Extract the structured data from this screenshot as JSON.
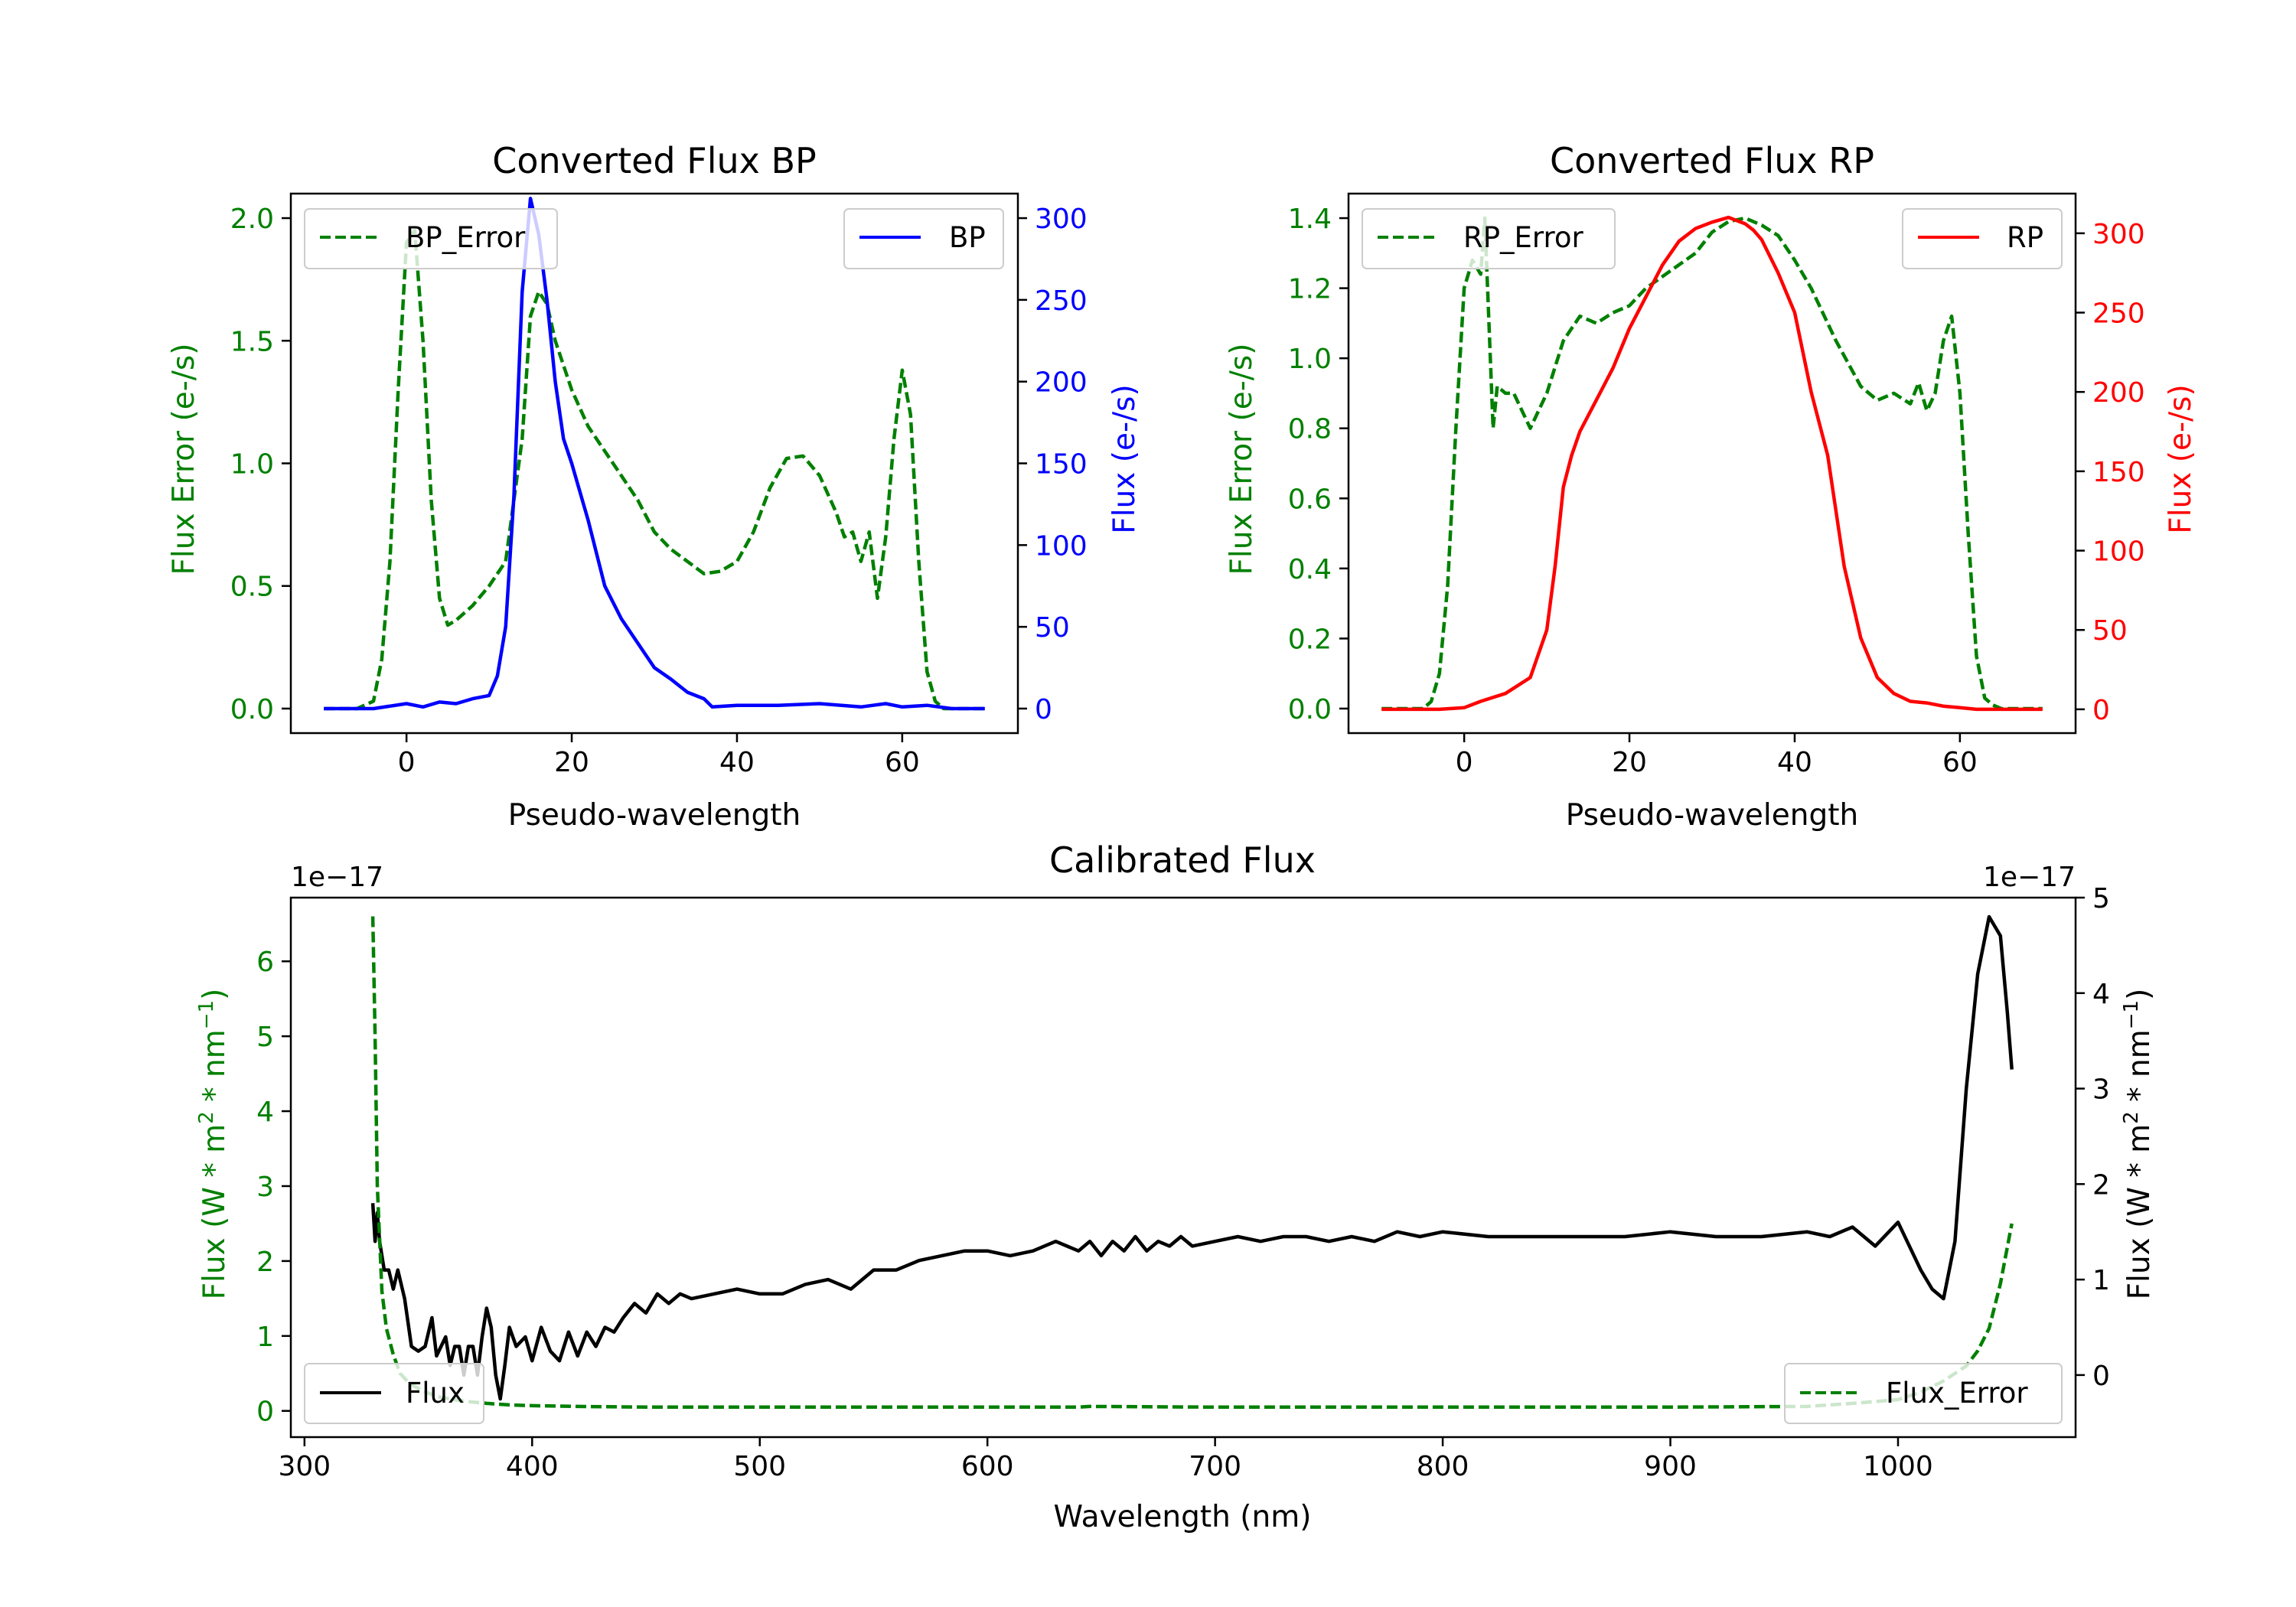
{
  "chart_data": [
    {
      "id": "bp",
      "type": "line",
      "title": "Converted Flux BP",
      "xlabel": "Pseudo-wavelength",
      "xlim": [
        -14,
        74
      ],
      "xticks": [
        0,
        20,
        40,
        60
      ],
      "left_axis": {
        "label": "Flux Error (e-/s)",
        "color": "#008000",
        "ylim": [
          -0.1,
          2.1
        ],
        "ticks": [
          0.0,
          0.5,
          1.0,
          1.5,
          2.0
        ],
        "tick_labels": [
          "0.0",
          "0.5",
          "1.0",
          "1.5",
          "2.0"
        ]
      },
      "right_axis": {
        "label": "Flux (e-/s)",
        "color": "#0000ff",
        "ylim": [
          -15,
          315
        ],
        "ticks": [
          0,
          50,
          100,
          150,
          200,
          250,
          300
        ],
        "tick_labels": [
          "0",
          "50",
          "100",
          "150",
          "200",
          "250",
          "300"
        ]
      },
      "series": [
        {
          "name": "BP_Error",
          "axis": "left",
          "color": "#008000",
          "dash": true,
          "legend_pos": "top-left",
          "x": [
            -10,
            -6,
            -4,
            -3,
            -2,
            -1,
            0,
            1,
            2,
            3,
            4,
            5,
            6,
            8,
            10,
            12,
            14,
            15,
            16,
            17,
            18,
            20,
            22,
            24,
            26,
            28,
            30,
            32,
            34,
            36,
            38,
            40,
            42,
            44,
            46,
            48,
            50,
            52,
            53,
            54,
            55,
            56,
            57,
            58,
            59,
            60,
            61,
            62,
            63,
            64,
            65,
            66,
            70
          ],
          "values": [
            0,
            0,
            0.03,
            0.2,
            0.6,
            1.3,
            1.9,
            1.95,
            1.5,
            0.85,
            0.45,
            0.34,
            0.36,
            0.42,
            0.5,
            0.6,
            1.1,
            1.6,
            1.7,
            1.65,
            1.5,
            1.3,
            1.15,
            1.05,
            0.95,
            0.85,
            0.72,
            0.65,
            0.6,
            0.55,
            0.56,
            0.6,
            0.72,
            0.9,
            1.02,
            1.03,
            0.95,
            0.8,
            0.7,
            0.72,
            0.6,
            0.72,
            0.45,
            0.7,
            1.1,
            1.38,
            1.2,
            0.6,
            0.15,
            0.03,
            0,
            0,
            0
          ]
        },
        {
          "name": "BP",
          "axis": "right",
          "color": "#0000ff",
          "dash": false,
          "legend_pos": "top-right",
          "x": [
            -10,
            -4,
            0,
            2,
            4,
            6,
            8,
            10,
            11,
            12,
            13,
            14,
            15,
            16,
            17,
            18,
            19,
            20,
            22,
            24,
            26,
            28,
            30,
            32,
            34,
            36,
            37,
            40,
            45,
            50,
            55,
            58,
            60,
            63,
            66,
            70
          ],
          "values": [
            0,
            0,
            3,
            1,
            4,
            3,
            6,
            8,
            20,
            50,
            130,
            255,
            312,
            290,
            250,
            200,
            165,
            150,
            115,
            75,
            55,
            40,
            25,
            18,
            10,
            6,
            1,
            2,
            2,
            3,
            1,
            3,
            1,
            2,
            0,
            0
          ]
        }
      ]
    },
    {
      "id": "rp",
      "type": "line",
      "title": "Converted Flux RP",
      "xlabel": "Pseudo-wavelength",
      "xlim": [
        -14,
        74
      ],
      "xticks": [
        0,
        20,
        40,
        60
      ],
      "left_axis": {
        "label": "Flux Error (e-/s)",
        "color": "#008000",
        "ylim": [
          -0.07,
          1.47
        ],
        "ticks": [
          0.0,
          0.2,
          0.4,
          0.6,
          0.8,
          1.0,
          1.2,
          1.4
        ],
        "tick_labels": [
          "0.0",
          "0.2",
          "0.4",
          "0.6",
          "0.8",
          "1.0",
          "1.2",
          "1.4"
        ]
      },
      "right_axis": {
        "label": "Flux (e-/s)",
        "color": "#ff0000",
        "ylim": [
          -15,
          325
        ],
        "ticks": [
          0,
          50,
          100,
          150,
          200,
          250,
          300
        ],
        "tick_labels": [
          "0",
          "50",
          "100",
          "150",
          "200",
          "250",
          "300"
        ]
      },
      "series": [
        {
          "name": "RP_Error",
          "axis": "left",
          "color": "#008000",
          "dash": true,
          "legend_pos": "top-left",
          "x": [
            -10,
            -5,
            -4,
            -3,
            -2,
            -1,
            0,
            1,
            2,
            2.5,
            3,
            3.5,
            4,
            5,
            6,
            7,
            8,
            10,
            12,
            14,
            16,
            18,
            20,
            22,
            25,
            28,
            30,
            32,
            34,
            36,
            38,
            40,
            42,
            45,
            48,
            50,
            52,
            54,
            55,
            56,
            57,
            58,
            59,
            60,
            61,
            62,
            63,
            64,
            65,
            70
          ],
          "values": [
            0,
            0,
            0.02,
            0.1,
            0.35,
            0.8,
            1.2,
            1.28,
            1.24,
            1.4,
            1.1,
            0.8,
            0.92,
            0.9,
            0.9,
            0.85,
            0.8,
            0.9,
            1.05,
            1.12,
            1.1,
            1.13,
            1.15,
            1.2,
            1.25,
            1.3,
            1.36,
            1.39,
            1.4,
            1.38,
            1.35,
            1.28,
            1.2,
            1.05,
            0.92,
            0.88,
            0.9,
            0.87,
            0.93,
            0.85,
            0.9,
            1.05,
            1.12,
            0.9,
            0.5,
            0.15,
            0.03,
            0.01,
            0,
            0
          ]
        },
        {
          "name": "RP",
          "axis": "right",
          "color": "#ff0000",
          "dash": false,
          "legend_pos": "top-right",
          "x": [
            -10,
            -3,
            0,
            2,
            5,
            8,
            10,
            11,
            12,
            13,
            14,
            16,
            18,
            20,
            22,
            24,
            26,
            28,
            30,
            32,
            33,
            34,
            35,
            36,
            38,
            40,
            42,
            44,
            46,
            48,
            50,
            52,
            54,
            56,
            58,
            60,
            62,
            65,
            70
          ],
          "values": [
            0,
            0,
            1,
            5,
            10,
            20,
            50,
            90,
            140,
            160,
            175,
            195,
            215,
            240,
            260,
            280,
            295,
            303,
            307,
            310,
            308,
            306,
            302,
            296,
            275,
            250,
            200,
            160,
            90,
            45,
            20,
            10,
            5,
            4,
            2,
            1,
            0,
            0,
            0
          ]
        }
      ]
    },
    {
      "id": "cal",
      "type": "line",
      "title": "Calibrated Flux",
      "xlabel": "Wavelength (nm)",
      "xlim": [
        294,
        1078
      ],
      "xticks": [
        300,
        400,
        500,
        600,
        700,
        800,
        900,
        1000
      ],
      "left_axis": {
        "label": "Flux (W * m2 * nm-1)",
        "color": "#008000",
        "ylim": [
          -0.35,
          6.85
        ],
        "ticks": [
          0,
          1,
          2,
          3,
          4,
          5,
          6
        ],
        "tick_labels": [
          "0",
          "1",
          "2",
          "3",
          "4",
          "5",
          "6"
        ],
        "offset_label": "1e−17"
      },
      "right_axis": {
        "label": "Flux (W * m2 * nm-1)",
        "color": "#000000",
        "ylim": [
          -0.65,
          5.0
        ],
        "ticks": [
          0,
          1,
          2,
          3,
          4,
          5
        ],
        "tick_labels": [
          "0",
          "1",
          "2",
          "3",
          "4",
          "5"
        ],
        "offset_label": "1e−17"
      },
      "series": [
        {
          "name": "Flux",
          "axis": "right",
          "color": "#000000",
          "dash": false,
          "legend_pos": "bottom-left",
          "x": [
            330,
            331,
            332,
            333,
            335,
            337,
            339,
            341,
            344,
            347,
            350,
            353,
            356,
            358,
            360,
            362,
            364,
            366,
            368,
            370,
            372,
            374,
            376,
            378,
            380,
            382,
            384,
            386,
            388,
            390,
            393,
            397,
            400,
            404,
            408,
            412,
            416,
            420,
            424,
            428,
            432,
            436,
            440,
            445,
            450,
            455,
            460,
            465,
            470,
            480,
            490,
            500,
            510,
            520,
            530,
            540,
            550,
            560,
            570,
            580,
            590,
            600,
            610,
            620,
            630,
            640,
            645,
            650,
            655,
            660,
            665,
            670,
            675,
            680,
            685,
            690,
            700,
            710,
            720,
            730,
            740,
            750,
            760,
            770,
            780,
            790,
            800,
            820,
            840,
            860,
            880,
            900,
            920,
            940,
            960,
            970,
            980,
            990,
            1000,
            1010,
            1015,
            1020,
            1025,
            1030,
            1035,
            1040,
            1045,
            1048,
            1050
          ],
          "values": [
            1.8,
            1.4,
            1.7,
            1.4,
            1.1,
            1.1,
            0.9,
            1.1,
            0.8,
            0.3,
            0.25,
            0.3,
            0.6,
            0.2,
            0.3,
            0.4,
            0.1,
            0.3,
            0.3,
            0.0,
            0.3,
            0.3,
            0.0,
            0.4,
            0.7,
            0.5,
            0.0,
            -0.25,
            0.1,
            0.5,
            0.3,
            0.4,
            0.15,
            0.5,
            0.25,
            0.15,
            0.45,
            0.2,
            0.45,
            0.3,
            0.5,
            0.45,
            0.6,
            0.75,
            0.65,
            0.85,
            0.75,
            0.85,
            0.8,
            0.85,
            0.9,
            0.85,
            0.85,
            0.95,
            1.0,
            0.9,
            1.1,
            1.1,
            1.2,
            1.25,
            1.3,
            1.3,
            1.25,
            1.3,
            1.4,
            1.3,
            1.4,
            1.25,
            1.4,
            1.3,
            1.45,
            1.3,
            1.4,
            1.35,
            1.45,
            1.35,
            1.4,
            1.45,
            1.4,
            1.45,
            1.45,
            1.4,
            1.45,
            1.4,
            1.5,
            1.45,
            1.5,
            1.45,
            1.45,
            1.45,
            1.45,
            1.5,
            1.45,
            1.45,
            1.5,
            1.45,
            1.55,
            1.35,
            1.6,
            1.1,
            0.9,
            0.8,
            1.4,
            3.0,
            4.2,
            4.8,
            4.6,
            3.8,
            3.2
          ]
        },
        {
          "name": "Flux_Error",
          "axis": "left",
          "color": "#008000",
          "dash": true,
          "legend_pos": "bottom-right",
          "x": [
            330,
            331,
            332,
            334,
            336,
            339,
            342,
            346,
            350,
            355,
            360,
            370,
            380,
            390,
            400,
            420,
            450,
            500,
            550,
            600,
            640,
            645,
            700,
            800,
            900,
            960,
            980,
            1000,
            1010,
            1020,
            1030,
            1035,
            1040,
            1045,
            1050
          ],
          "values": [
            6.6,
            5.0,
            3.0,
            1.6,
            1.1,
            0.75,
            0.5,
            0.37,
            0.3,
            0.23,
            0.18,
            0.13,
            0.1,
            0.08,
            0.07,
            0.06,
            0.05,
            0.05,
            0.05,
            0.05,
            0.05,
            0.06,
            0.05,
            0.05,
            0.05,
            0.06,
            0.1,
            0.15,
            0.25,
            0.4,
            0.6,
            0.8,
            1.1,
            1.7,
            2.5
          ]
        }
      ]
    }
  ]
}
